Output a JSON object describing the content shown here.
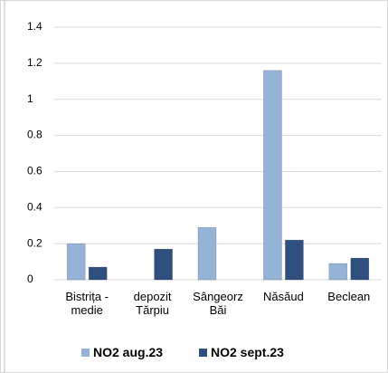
{
  "chart_data": {
    "type": "bar",
    "categories": [
      "Bistrița - medie",
      "depozit Tărpiu",
      "Sângeorz Băi",
      "Năsăud",
      "Beclean"
    ],
    "series": [
      {
        "name": "NO2 aug.23",
        "color": "#95b3d7",
        "values": [
          0.2,
          null,
          0.29,
          1.16,
          0.09
        ]
      },
      {
        "name": "NO2 sept.23",
        "color": "#2f4f7f",
        "values": [
          0.07,
          0.17,
          null,
          0.22,
          0.12
        ]
      }
    ],
    "ylim": [
      0,
      1.4
    ],
    "yticks": [
      0,
      0.2,
      0.4,
      0.6,
      0.8,
      1,
      1.2,
      1.4
    ],
    "grid": true,
    "legend": "bottom"
  }
}
